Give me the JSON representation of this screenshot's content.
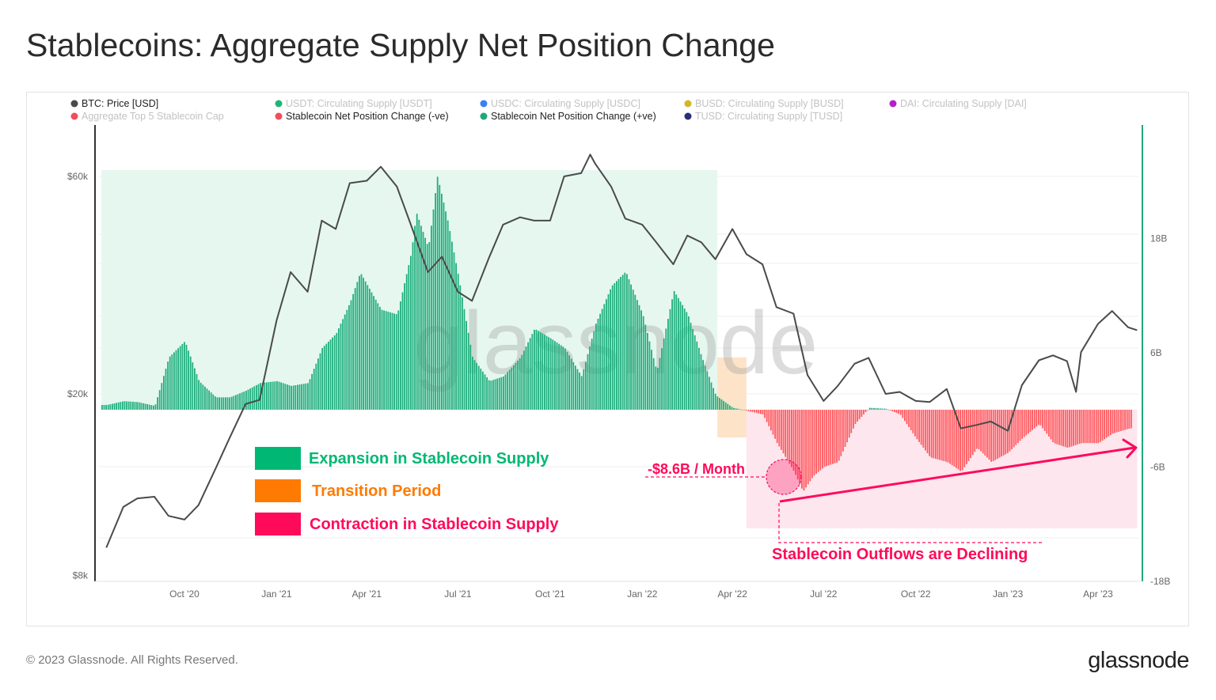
{
  "title": "Stablecoins: Aggregate Supply Net Position Change",
  "footer": "© 2023 Glassnode. All Rights Reserved.",
  "logo": "glassnode",
  "watermark": "glassnode",
  "legend": [
    {
      "label": "BTC: Price [USD]",
      "color": "#4a4a4a",
      "active": true
    },
    {
      "label": "USDT: Circulating Supply [USDT]",
      "color": "#1fb57a",
      "active": false
    },
    {
      "label": "USDC: Circulating Supply [USDC]",
      "color": "#3b7ff0",
      "active": false
    },
    {
      "label": "BUSD: Circulating Supply [BUSD]",
      "color": "#d4b62a",
      "active": false
    },
    {
      "label": "DAI: Circulating Supply [DAI]",
      "color": "#b41fc8",
      "active": false
    },
    {
      "label": "Aggregate Top 5 Stablecoin Cap",
      "color": "#f04e5a",
      "active": false
    },
    {
      "label": "Stablecoin Net Position Change (-ve)",
      "color": "#f04e5a",
      "active": true
    },
    {
      "label": "Stablecoin Net Position Change (+ve)",
      "color": "#1fa87a",
      "active": true
    },
    {
      "label": "TUSD: Circulating Supply [TUSD]",
      "color": "#2a2f7a",
      "active": false
    }
  ],
  "annotations": {
    "expansion": {
      "label": "Expansion in Stablecoin Supply",
      "color": "#00b873"
    },
    "transition": {
      "label": "Transition Period",
      "color": "#ff7a00"
    },
    "contraction": {
      "label": "Contraction in Stablecoin Supply",
      "color": "#ff0a5a"
    },
    "peak_outflow": "-$8.6B / Month",
    "trend": "Stablecoin Outflows are Declining"
  },
  "chart_data": {
    "type": "bar+line",
    "x_ticks": [
      "Oct '20",
      "Jan '21",
      "Apr '21",
      "Jul '21",
      "Oct '21",
      "Jan '22",
      "Apr '22",
      "Jul '22",
      "Oct '22",
      "Jan '23",
      "Apr '23"
    ],
    "x_tick_dates": [
      "2020-10-01",
      "2021-01-01",
      "2021-04-01",
      "2021-07-01",
      "2021-10-01",
      "2022-01-01",
      "2022-04-01",
      "2022-07-01",
      "2022-10-01",
      "2023-01-01",
      "2023-04-01"
    ],
    "xlim": [
      "2020-07-10",
      "2023-05-10"
    ],
    "left_axis": {
      "scale": "log",
      "ticks": [
        "$8k",
        "$20k",
        "$60k"
      ],
      "tick_values": [
        8000,
        20000,
        60000
      ],
      "range": [
        8000,
        93000
      ]
    },
    "right_axis": {
      "scale": "linear",
      "ticks": [
        "-18B",
        "-6B",
        "6B",
        "18B"
      ],
      "tick_values": [
        -18,
        -6,
        6,
        18
      ],
      "unit": "B",
      "range": [
        -18,
        30
      ]
    },
    "regions": [
      {
        "name": "expansion",
        "from": "2020-07-10",
        "to": "2022-03-17",
        "color": "#e6f7ef"
      },
      {
        "name": "transition",
        "from": "2022-03-17",
        "to": "2022-04-15",
        "color": "#fde3c8"
      },
      {
        "name": "contraction",
        "from": "2022-04-15",
        "to": "2023-05-10",
        "color": "#fde6ee"
      }
    ],
    "series": [
      {
        "name": "BTC: Price [USD]",
        "axis": "left",
        "type": "line",
        "color": "#4a4a4a",
        "points": [
          [
            "2020-07-15",
            9200
          ],
          [
            "2020-08-01",
            11300
          ],
          [
            "2020-08-15",
            11800
          ],
          [
            "2020-09-01",
            11900
          ],
          [
            "2020-09-15",
            10800
          ],
          [
            "2020-10-01",
            10600
          ],
          [
            "2020-10-15",
            11400
          ],
          [
            "2020-11-01",
            13700
          ],
          [
            "2020-11-15",
            16000
          ],
          [
            "2020-12-01",
            19000
          ],
          [
            "2020-12-15",
            19400
          ],
          [
            "2021-01-01",
            29000
          ],
          [
            "2021-01-15",
            37000
          ],
          [
            "2021-02-01",
            33500
          ],
          [
            "2021-02-15",
            48000
          ],
          [
            "2021-03-01",
            46000
          ],
          [
            "2021-03-15",
            58000
          ],
          [
            "2021-04-01",
            58700
          ],
          [
            "2021-04-15",
            63000
          ],
          [
            "2021-05-01",
            57000
          ],
          [
            "2021-05-15",
            47000
          ],
          [
            "2021-06-01",
            37000
          ],
          [
            "2021-06-15",
            40000
          ],
          [
            "2021-07-01",
            33500
          ],
          [
            "2021-07-15",
            32000
          ],
          [
            "2021-08-01",
            39800
          ],
          [
            "2021-08-15",
            47000
          ],
          [
            "2021-09-01",
            48800
          ],
          [
            "2021-09-15",
            48000
          ],
          [
            "2021-10-01",
            48000
          ],
          [
            "2021-10-15",
            60000
          ],
          [
            "2021-11-01",
            61000
          ],
          [
            "2021-11-10",
            67000
          ],
          [
            "2021-11-15",
            64000
          ],
          [
            "2021-12-01",
            57000
          ],
          [
            "2021-12-15",
            48500
          ],
          [
            "2022-01-01",
            47000
          ],
          [
            "2022-01-15",
            43000
          ],
          [
            "2022-02-01",
            38500
          ],
          [
            "2022-02-15",
            44500
          ],
          [
            "2022-03-01",
            43000
          ],
          [
            "2022-03-15",
            39500
          ],
          [
            "2022-04-01",
            46000
          ],
          [
            "2022-04-15",
            40500
          ],
          [
            "2022-05-01",
            38500
          ],
          [
            "2022-05-15",
            31000
          ],
          [
            "2022-06-01",
            30000
          ],
          [
            "2022-06-15",
            22000
          ],
          [
            "2022-07-01",
            19300
          ],
          [
            "2022-07-15",
            20800
          ],
          [
            "2022-08-01",
            23300
          ],
          [
            "2022-08-15",
            24000
          ],
          [
            "2022-09-01",
            20000
          ],
          [
            "2022-09-15",
            20200
          ],
          [
            "2022-10-01",
            19300
          ],
          [
            "2022-10-15",
            19200
          ],
          [
            "2022-11-01",
            20500
          ],
          [
            "2022-11-15",
            16800
          ],
          [
            "2022-12-01",
            17100
          ],
          [
            "2022-12-15",
            17400
          ],
          [
            "2023-01-01",
            16600
          ],
          [
            "2023-01-15",
            20900
          ],
          [
            "2023-02-01",
            23700
          ],
          [
            "2023-02-15",
            24300
          ],
          [
            "2023-03-01",
            23600
          ],
          [
            "2023-03-10",
            20200
          ],
          [
            "2023-03-15",
            24700
          ],
          [
            "2023-04-01",
            28500
          ],
          [
            "2023-04-15",
            30400
          ],
          [
            "2023-05-01",
            28000
          ],
          [
            "2023-05-10",
            27600
          ]
        ]
      },
      {
        "name": "Stablecoin Net Position Change",
        "axis": "right",
        "type": "bar",
        "unit": "B",
        "pos_color": "#1faf7e",
        "neg_color": "#ff5a5f",
        "points": [
          [
            "2020-07-15",
            0.5
          ],
          [
            "2020-08-01",
            0.9
          ],
          [
            "2020-08-15",
            0.8
          ],
          [
            "2020-09-01",
            0.4
          ],
          [
            "2020-09-15",
            5.5
          ],
          [
            "2020-10-01",
            7.2
          ],
          [
            "2020-10-15",
            3.0
          ],
          [
            "2020-11-01",
            1.3
          ],
          [
            "2020-11-15",
            1.3
          ],
          [
            "2020-12-01",
            2.0
          ],
          [
            "2020-12-15",
            2.8
          ],
          [
            "2021-01-01",
            3.0
          ],
          [
            "2021-01-15",
            2.5
          ],
          [
            "2021-02-01",
            2.8
          ],
          [
            "2021-02-15",
            6.5
          ],
          [
            "2021-03-01",
            8.0
          ],
          [
            "2021-03-15",
            11.3
          ],
          [
            "2021-03-25",
            14.4
          ],
          [
            "2021-04-15",
            10.5
          ],
          [
            "2021-05-01",
            10.0
          ],
          [
            "2021-05-15",
            16.5
          ],
          [
            "2021-05-20",
            20.7
          ],
          [
            "2021-06-01",
            17.0
          ],
          [
            "2021-06-10",
            24.5
          ],
          [
            "2021-06-20",
            20.0
          ],
          [
            "2021-07-01",
            14.0
          ],
          [
            "2021-07-15",
            5.5
          ],
          [
            "2021-08-01",
            3.0
          ],
          [
            "2021-08-15",
            3.5
          ],
          [
            "2021-09-01",
            5.5
          ],
          [
            "2021-09-15",
            8.5
          ],
          [
            "2021-10-01",
            7.5
          ],
          [
            "2021-10-15",
            6.5
          ],
          [
            "2021-11-01",
            3.5
          ],
          [
            "2021-11-15",
            9.0
          ],
          [
            "2021-12-01",
            13.0
          ],
          [
            "2021-12-15",
            14.5
          ],
          [
            "2022-01-01",
            10.0
          ],
          [
            "2022-01-15",
            4.0
          ],
          [
            "2022-02-01",
            12.5
          ],
          [
            "2022-02-15",
            10.0
          ],
          [
            "2022-03-01",
            5.5
          ],
          [
            "2022-03-15",
            1.5
          ],
          [
            "2022-04-01",
            0.2
          ],
          [
            "2022-04-15",
            -0.1
          ],
          [
            "2022-05-01",
            -0.5
          ],
          [
            "2022-05-15",
            -3.5
          ],
          [
            "2022-06-01",
            -6.5
          ],
          [
            "2022-06-10",
            -8.6
          ],
          [
            "2022-06-20",
            -7.0
          ],
          [
            "2022-07-01",
            -6.0
          ],
          [
            "2022-07-15",
            -5.5
          ],
          [
            "2022-08-01",
            -1.5
          ],
          [
            "2022-08-15",
            0.2
          ],
          [
            "2022-09-01",
            0.1
          ],
          [
            "2022-09-15",
            -0.5
          ],
          [
            "2022-10-01",
            -3.0
          ],
          [
            "2022-10-15",
            -5.0
          ],
          [
            "2022-11-01",
            -5.5
          ],
          [
            "2022-11-15",
            -6.5
          ],
          [
            "2022-12-01",
            -4.0
          ],
          [
            "2022-12-15",
            -5.5
          ],
          [
            "2023-01-01",
            -4.5
          ],
          [
            "2023-01-15",
            -3.0
          ],
          [
            "2023-02-01",
            -1.5
          ],
          [
            "2023-02-15",
            -3.5
          ],
          [
            "2023-03-01",
            -4.0
          ],
          [
            "2023-03-15",
            -3.5
          ],
          [
            "2023-04-01",
            -3.5
          ],
          [
            "2023-04-15",
            -2.5
          ],
          [
            "2023-05-01",
            -2.0
          ],
          [
            "2023-05-10",
            -1.8
          ]
        ]
      }
    ],
    "grid": true
  }
}
